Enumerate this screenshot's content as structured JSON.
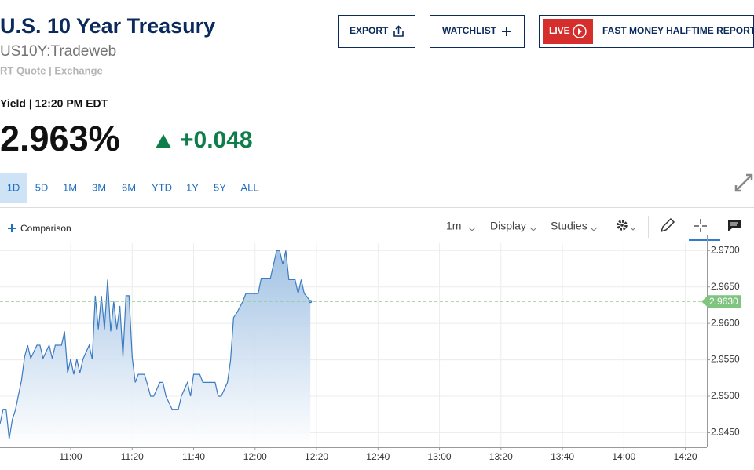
{
  "header": {
    "title": "U.S. 10 Year Treasury",
    "symbol": "US10Y:Tradeweb",
    "quote_type": "RT Quote | Exchange"
  },
  "actions": {
    "export": "EXPORT",
    "watchlist": "WATCHLIST",
    "live_badge": "LIVE",
    "live_show": "FAST MONEY HALFTIME REPORT"
  },
  "quote": {
    "label": "Yield | 12:20 PM EDT",
    "price": "2.963%",
    "change": "+0.048"
  },
  "ranges": [
    "1D",
    "5D",
    "1M",
    "3M",
    "6M",
    "YTD",
    "1Y",
    "5Y",
    "ALL"
  ],
  "toolbar": {
    "comparison": "Comparison",
    "interval": "1m",
    "display": "Display",
    "studies": "Studies"
  },
  "chart_data": {
    "type": "area",
    "color": "#3b7bbf",
    "x": [
      637,
      638,
      639,
      640,
      641,
      642,
      644,
      645,
      646,
      647,
      649,
      650,
      651,
      653,
      654,
      655,
      657,
      658,
      659,
      660,
      661,
      662,
      663,
      664,
      666,
      667,
      668,
      669,
      670,
      671,
      672,
      673,
      674,
      675,
      676,
      677,
      678,
      679,
      680,
      681,
      682,
      684,
      685,
      686,
      687,
      689,
      690,
      691,
      693,
      694,
      695,
      696,
      698,
      699,
      700,
      702,
      703,
      704,
      705,
      707,
      708,
      709,
      711,
      712,
      713,
      714,
      716,
      717,
      718,
      720,
      721,
      722,
      723,
      725,
      726,
      727,
      728,
      729,
      730,
      731,
      732,
      733,
      734,
      735,
      736,
      737,
      738
    ],
    "values": [
      2.9462,
      2.9482,
      2.9482,
      2.9441,
      2.9468,
      2.9481,
      2.9522,
      2.9554,
      2.957,
      2.9552,
      2.957,
      2.957,
      2.9552,
      2.957,
      2.9552,
      2.957,
      2.957,
      2.9589,
      2.9532,
      2.9551,
      2.953,
      2.9551,
      2.9532,
      2.9551,
      2.957,
      2.9551,
      2.9638,
      2.9592,
      2.9638,
      2.9592,
      2.966,
      2.9589,
      2.963,
      2.9592,
      2.9624,
      2.9554,
      2.9638,
      2.9638,
      2.9554,
      2.9519,
      2.953,
      2.953,
      2.9516,
      2.95,
      2.95,
      2.9519,
      2.9519,
      2.95,
      2.9482,
      2.9482,
      2.9482,
      2.95,
      2.9519,
      2.95,
      2.953,
      2.953,
      2.9519,
      2.9519,
      2.9519,
      2.9519,
      2.95,
      2.95,
      2.9519,
      2.9549,
      2.9608,
      2.9614,
      2.963,
      2.9641,
      2.9641,
      2.9641,
      2.9641,
      2.9662,
      2.9662,
      2.9662,
      2.9681,
      2.97,
      2.97,
      2.9681,
      2.97,
      2.966,
      2.966,
      2.966,
      2.9641,
      2.966,
      2.9641,
      2.9636,
      2.963
    ],
    "xlim": [
      637,
      867
    ],
    "ylim": [
      2.943,
      2.971
    ],
    "xticks": [
      {
        "value": 660,
        "label": "11:00"
      },
      {
        "value": 680,
        "label": "11:20"
      },
      {
        "value": 700,
        "label": "11:40"
      },
      {
        "value": 720,
        "label": "12:00"
      },
      {
        "value": 740,
        "label": "12:20"
      },
      {
        "value": 760,
        "label": "12:40"
      },
      {
        "value": 780,
        "label": "13:00"
      },
      {
        "value": 800,
        "label": "13:20"
      },
      {
        "value": 820,
        "label": "13:40"
      },
      {
        "value": 840,
        "label": "14:00"
      },
      {
        "value": 860,
        "label": "14:20"
      }
    ],
    "yticks": [
      {
        "value": 2.945,
        "label": "2.9450"
      },
      {
        "value": 2.95,
        "label": "2.9500"
      },
      {
        "value": 2.955,
        "label": "2.9550"
      },
      {
        "value": 2.96,
        "label": "2.9600"
      },
      {
        "value": 2.965,
        "label": "2.9650"
      },
      {
        "value": 2.97,
        "label": "2.9700"
      }
    ],
    "reference_line": {
      "value": 2.963,
      "label": "2.9630"
    },
    "grid": true
  }
}
